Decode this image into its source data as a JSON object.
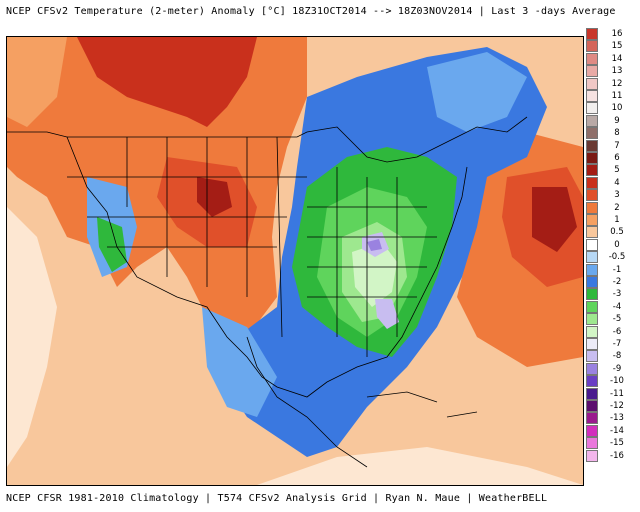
{
  "header": {
    "title": "NCEP CFSv2 Temperature (2-meter) Anomaly  [°C] 18Z31OCT2014 --> 18Z03NOV2014 | Last 3 -days Average"
  },
  "footer": {
    "credit": "NCEP CFSR 1981-2010 Climatology | T574 CFSv2 Analysis Grid | Ryan N. Maue | WeatherBELL"
  },
  "legend": {
    "unit": "°C",
    "items": [
      {
        "label": "16",
        "color": "#c8362a"
      },
      {
        "label": "15",
        "color": "#d4655a"
      },
      {
        "label": "14",
        "color": "#df8a84"
      },
      {
        "label": "13",
        "color": "#e8aaa6"
      },
      {
        "label": "12",
        "color": "#f0c8c6"
      },
      {
        "label": "11",
        "color": "#f6e2e1"
      },
      {
        "label": "10",
        "color": "#f2efee"
      },
      {
        "label": "9",
        "color": "#b9a9a6"
      },
      {
        "label": "8",
        "color": "#8f6f6a"
      },
      {
        "label": "7",
        "color": "#6a3a33"
      },
      {
        "label": "6",
        "color": "#7a1a14"
      },
      {
        "label": "5",
        "color": "#a41d15"
      },
      {
        "label": "4",
        "color": "#c9301c"
      },
      {
        "label": "3",
        "color": "#e0502a"
      },
      {
        "label": "2",
        "color": "#ef7a3c"
      },
      {
        "label": "1",
        "color": "#f5a062"
      },
      {
        "label": "0.5",
        "color": "#f8c79c"
      },
      {
        "label": "0",
        "color": "#ffffff"
      },
      {
        "label": "-0.5",
        "color": "#b7d8f5"
      },
      {
        "label": "-1",
        "color": "#6aa8ee"
      },
      {
        "label": "-2",
        "color": "#3a78e0"
      },
      {
        "label": "-3",
        "color": "#2fb83c"
      },
      {
        "label": "-4",
        "color": "#5fd45c"
      },
      {
        "label": "-5",
        "color": "#9ee88f"
      },
      {
        "label": "-6",
        "color": "#d2f5c6"
      },
      {
        "label": "-7",
        "color": "#ecebf7"
      },
      {
        "label": "-8",
        "color": "#c8bdf0"
      },
      {
        "label": "-9",
        "color": "#9a82e0"
      },
      {
        "label": "-10",
        "color": "#6a3fc4"
      },
      {
        "label": "-11",
        "color": "#4a1a8e"
      },
      {
        "label": "-12",
        "color": "#5c0e6e"
      },
      {
        "label": "-13",
        "color": "#9a1a8e"
      },
      {
        "label": "-14",
        "color": "#d22ebd"
      },
      {
        "label": "-15",
        "color": "#e978dc"
      },
      {
        "label": "-16",
        "color": "#f3b6ec"
      }
    ]
  }
}
